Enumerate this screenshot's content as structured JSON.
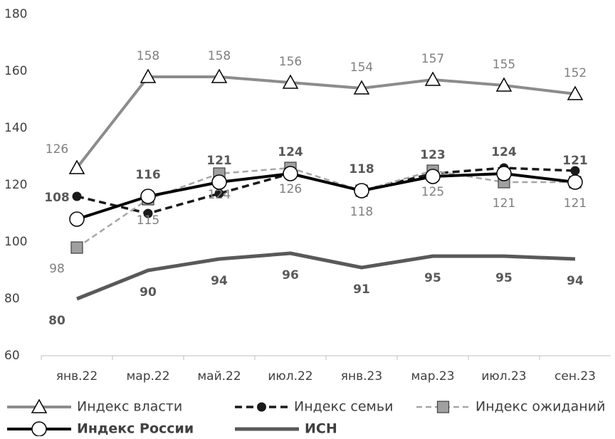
{
  "chart_data": {
    "type": "line",
    "categories": [
      "янв.22",
      "мар.22",
      "май.22",
      "июл.22",
      "янв.23",
      "мар.23",
      "июл.23",
      "сен.23"
    ],
    "ylim": [
      60,
      180
    ],
    "yticks": [
      60,
      80,
      100,
      120,
      140,
      160,
      180
    ],
    "grid": false,
    "legend": "bottom",
    "series": [
      {
        "name": "Индекс власти",
        "color": "#8c8c8c",
        "marker": "triangle",
        "dashed": false,
        "bold": false,
        "labels": true,
        "values": [
          126,
          158,
          158,
          156,
          154,
          157,
          155,
          152
        ]
      },
      {
        "name": "Индекс семьи",
        "color": "#1a1a1a",
        "marker": "dot",
        "dashed": true,
        "bold": false,
        "labels": false,
        "values": [
          116,
          110,
          117,
          124,
          118,
          124,
          126,
          125
        ]
      },
      {
        "name": "Индекс ожиданий",
        "color": "#a6a6a6",
        "marker": "square",
        "dashed": true,
        "bold": false,
        "labels": true,
        "values": [
          98,
          115,
          124,
          126,
          118,
          125,
          121,
          121
        ]
      },
      {
        "name": "Индекс России",
        "color": "#000000",
        "marker": "circle",
        "dashed": false,
        "bold": true,
        "labels": true,
        "values": [
          108,
          116,
          121,
          124,
          118,
          123,
          124,
          121
        ]
      },
      {
        "name": "ИСН",
        "color": "#595959",
        "marker": "none",
        "dashed": false,
        "bold": true,
        "labels": true,
        "values": [
          80,
          90,
          94,
          96,
          91,
          95,
          95,
          94
        ]
      }
    ]
  }
}
